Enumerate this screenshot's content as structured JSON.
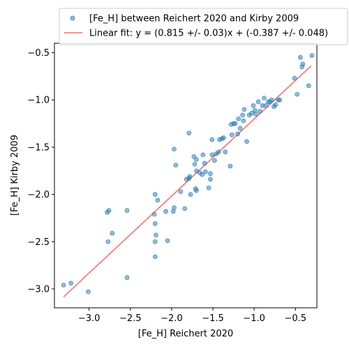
{
  "chart_data": {
    "type": "scatter",
    "xlabel": "[Fe_H] Reichert 2020",
    "ylabel": "[Fe_H] Kirby 2009",
    "xlim": [
      -3.42,
      -0.24
    ],
    "ylim": [
      -3.2,
      -0.4
    ],
    "xticks": [
      -3.0,
      -2.5,
      -2.0,
      -1.5,
      -1.0,
      -0.5
    ],
    "xtick_labels": [
      "−3.0",
      "−2.5",
      "−2.0",
      "−1.5",
      "−1.0",
      "−0.5"
    ],
    "yticks": [
      -3.0,
      -2.5,
      -2.0,
      -1.5,
      -1.0,
      -0.5
    ],
    "ytick_labels": [
      "−3.0",
      "−2.5",
      "−2.0",
      "−1.5",
      "−1.0",
      "−0.5"
    ],
    "grid": false,
    "legend_position": "top-right",
    "scatter_color": "#1f77b4",
    "line_color": "#ff0000",
    "series": [
      {
        "name": "[Fe_H] between Reichert 2020 and Kirby 2009",
        "kind": "scatter",
        "points": [
          [
            -3.31,
            -2.96
          ],
          [
            -3.22,
            -2.94
          ],
          [
            -3.01,
            -3.03
          ],
          [
            -2.78,
            -2.19
          ],
          [
            -2.76,
            -2.17
          ],
          [
            -2.77,
            -2.5
          ],
          [
            -2.72,
            -2.41
          ],
          [
            -2.54,
            -2.17
          ],
          [
            -2.54,
            -2.88
          ],
          [
            -2.2,
            -2.0
          ],
          [
            -2.21,
            -2.21
          ],
          [
            -2.2,
            -2.31
          ],
          [
            -2.2,
            -2.5
          ],
          [
            -2.19,
            -2.43
          ],
          [
            -2.2,
            -2.66
          ],
          [
            -2.17,
            -2.06
          ],
          [
            -2.07,
            -2.18
          ],
          [
            -2.05,
            -2.49
          ],
          [
            -1.98,
            -2.18
          ],
          [
            -1.97,
            -2.14
          ],
          [
            -1.97,
            -1.52
          ],
          [
            -1.95,
            -1.69
          ],
          [
            -1.89,
            -1.97
          ],
          [
            -1.84,
            -2.15
          ],
          [
            -1.82,
            -1.84
          ],
          [
            -1.79,
            -1.83
          ],
          [
            -1.78,
            -1.81
          ],
          [
            -1.77,
            -2.0
          ],
          [
            -1.79,
            -1.35
          ],
          [
            -1.73,
            -1.6
          ],
          [
            -1.72,
            -1.68
          ],
          [
            -1.71,
            -1.94
          ],
          [
            -1.7,
            -1.96
          ],
          [
            -1.7,
            -1.75
          ],
          [
            -1.7,
            -1.63
          ],
          [
            -1.66,
            -1.77
          ],
          [
            -1.63,
            -1.79
          ],
          [
            -1.62,
            -1.58
          ],
          [
            -1.6,
            -1.67
          ],
          [
            -1.59,
            -1.76
          ],
          [
            -1.55,
            -1.93
          ],
          [
            -1.53,
            -1.84
          ],
          [
            -1.53,
            -1.78
          ],
          [
            -1.51,
            -1.42
          ],
          [
            -1.51,
            -1.58
          ],
          [
            -1.48,
            -1.64
          ],
          [
            -1.46,
            -1.57
          ],
          [
            -1.43,
            -1.55
          ],
          [
            -1.42,
            -1.42
          ],
          [
            -1.39,
            -1.41
          ],
          [
            -1.37,
            -1.4
          ],
          [
            -1.35,
            -1.55
          ],
          [
            -1.29,
            -1.7
          ],
          [
            -1.28,
            -1.26
          ],
          [
            -1.27,
            -1.37
          ],
          [
            -1.25,
            -1.25
          ],
          [
            -1.23,
            -1.25
          ],
          [
            -1.2,
            -1.36
          ],
          [
            -1.19,
            -1.2
          ],
          [
            -1.17,
            -1.3
          ],
          [
            -1.14,
            -1.16
          ],
          [
            -1.13,
            -1.22
          ],
          [
            -1.12,
            -1.1
          ],
          [
            -1.09,
            -1.44
          ],
          [
            -1.06,
            -1.16
          ],
          [
            -1.03,
            -1.14
          ],
          [
            -1.01,
            -1.06
          ],
          [
            -0.99,
            -1.11
          ],
          [
            -0.98,
            -1.15
          ],
          [
            -0.95,
            -1.02
          ],
          [
            -0.93,
            -1.12
          ],
          [
            -0.9,
            -1.06
          ],
          [
            -0.88,
            -0.98
          ],
          [
            -0.86,
            -1.06
          ],
          [
            -0.83,
            -1.02
          ],
          [
            -0.81,
            -1.02
          ],
          [
            -0.79,
            -1.0
          ],
          [
            -0.76,
            -1.07
          ],
          [
            -0.74,
            -1.05
          ],
          [
            -0.71,
            -1.0
          ],
          [
            -0.69,
            -1.0
          ],
          [
            -0.51,
            -0.77
          ],
          [
            -0.48,
            -0.94
          ],
          [
            -0.44,
            -0.55
          ],
          [
            -0.42,
            -0.65
          ],
          [
            -0.41,
            -0.62
          ],
          [
            -0.34,
            -0.85
          ],
          [
            -0.3,
            -0.53
          ]
        ]
      },
      {
        "name": "Linear fit: y = (0.815 +/- 0.03)x + (-0.387 +/- 0.048)",
        "kind": "line",
        "slope": 0.815,
        "intercept": -0.387,
        "x_range": [
          -3.31,
          -0.31
        ]
      }
    ]
  }
}
